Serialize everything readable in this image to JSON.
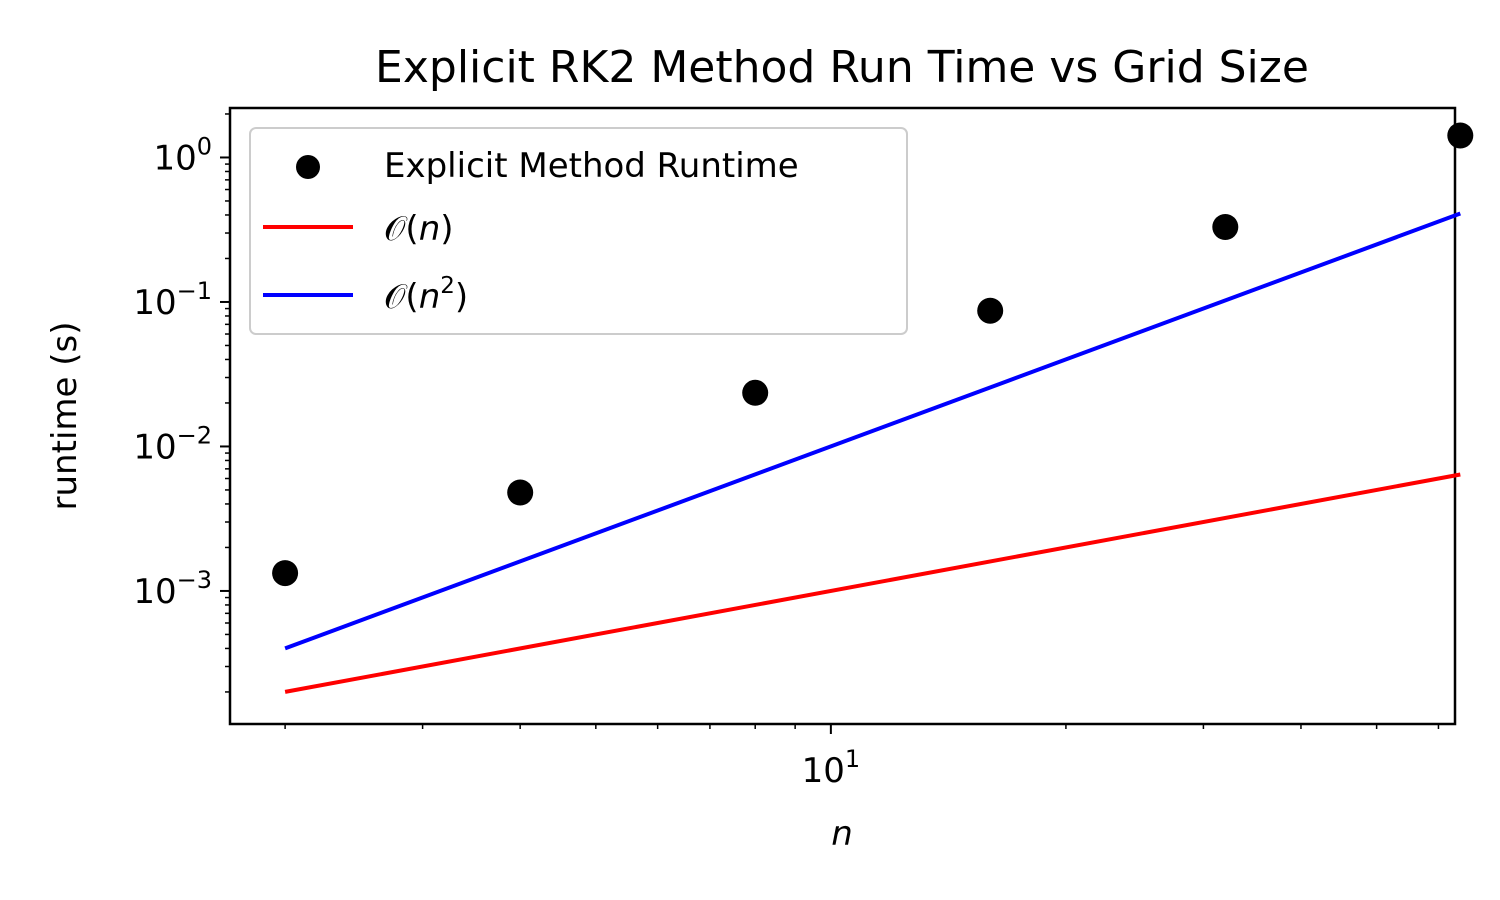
{
  "chart_data": {
    "type": "scatter",
    "title": "Explicit RK2 Method Run Time vs Grid Size",
    "xlabel": "n",
    "ylabel": "runtime (s)",
    "xscale": "log",
    "yscale": "log",
    "xlim": [
      1.7,
      63
    ],
    "ylim": [
      0.00012,
      2.2
    ],
    "x_tick_labels": [
      {
        "base": "10",
        "exp": "1",
        "value": 10
      }
    ],
    "y_tick_labels": [
      {
        "base": "10",
        "exp": "−3",
        "value": 0.001
      },
      {
        "base": "10",
        "exp": "−2",
        "value": 0.01
      },
      {
        "base": "10",
        "exp": "−1",
        "value": 0.1
      },
      {
        "base": "10",
        "exp": "0",
        "value": 1
      }
    ],
    "grid": false,
    "legend_position": "upper-left",
    "series": [
      {
        "name": "Explicit Method Runtime",
        "kind": "scatter",
        "color": "#000000",
        "x": [
          2,
          4,
          8,
          16,
          32,
          64
        ],
        "y": [
          0.00133,
          0.0048,
          0.0235,
          0.087,
          0.33,
          1.42
        ]
      },
      {
        "name_prefix": "𝒪(",
        "name_var": "n",
        "name_exp": "",
        "name_suffix": ")",
        "kind": "line",
        "color": "#ff0000",
        "x": [
          2,
          64
        ],
        "y": [
          0.0002,
          0.0064
        ]
      },
      {
        "name_prefix": "𝒪(",
        "name_var": "n",
        "name_exp": "2",
        "name_suffix": ")",
        "kind": "line",
        "color": "#0000ff",
        "x": [
          2,
          64
        ],
        "y": [
          0.0004,
          0.4096
        ]
      }
    ]
  }
}
